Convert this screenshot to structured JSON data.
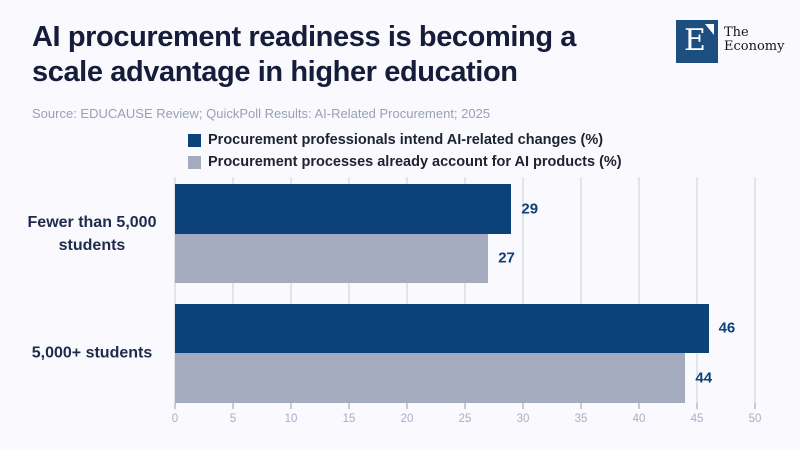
{
  "header": {
    "title_lines": [
      "AI procurement readiness is becoming a",
      "scale advantage in higher education"
    ],
    "source": "Source: EDUCAUSE Review; QuickPoll Results: AI-Related Procurement; 2025",
    "logo": {
      "mark_letter": "E",
      "brand_line1": "The",
      "brand_line2": "Economy"
    }
  },
  "colors": {
    "background": "#f9f9fe",
    "series_intend": "#0b4279",
    "series_already": "#a4abbf",
    "title_text": "#161d3a",
    "value_label": "#0e4077",
    "category_label": "#1f2b4d",
    "tick_label": "#a9aec2",
    "gridline": "#e1e4ec",
    "logo_square": "#1c4e80"
  },
  "chart_data": {
    "type": "bar",
    "orientation": "horizontal",
    "title": "AI procurement readiness is becoming a scale advantage in higher education",
    "source": "Source: EDUCAUSE Review; QuickPoll Results: AI-Related Procurement; 2025",
    "categories": [
      "Fewer than 5,000 students",
      "5,000+ students"
    ],
    "series": [
      {
        "name": "Procurement professionals intend AI-related changes (%)",
        "color": "#0b4279",
        "values": [
          29,
          46
        ]
      },
      {
        "name": "Procurement processes already account for AI products (%)",
        "color": "#a4abbf",
        "values": [
          27,
          44
        ]
      }
    ],
    "xlabel": "",
    "ylabel": "",
    "xlim": [
      0,
      50
    ],
    "xticks": [
      0,
      5,
      10,
      15,
      20,
      25,
      30,
      35,
      40,
      45,
      50
    ],
    "grid": true,
    "legend_position": "top",
    "value_labels_shown": true
  }
}
